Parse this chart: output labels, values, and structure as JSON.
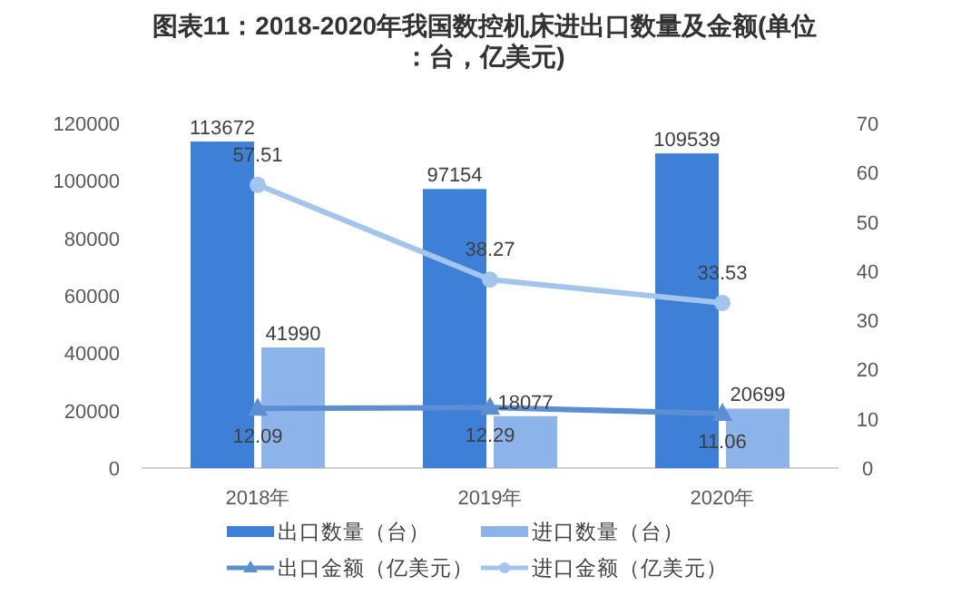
{
  "chart_data": {
    "type": "bar",
    "title": "图表11：2018-2020年我国数控机床进出口数量及金额(单位：台，亿美元)",
    "categories": [
      "2018年",
      "2019年",
      "2020年"
    ],
    "series": [
      {
        "name": "出口数量（台）",
        "color": "#3e80d8",
        "values": [
          113672,
          97154,
          109539
        ]
      },
      {
        "name": "进口数量（台）",
        "color": "#8cb4ea",
        "values": [
          41990,
          18077,
          20699
        ]
      },
      {
        "name": "出口金额（亿美元）",
        "type": "line",
        "axis": "y2",
        "marker": "triangle",
        "color": "#5b8fd2",
        "values": [
          12.09,
          12.29,
          11.06
        ]
      },
      {
        "name": "进口金额（亿美元）",
        "type": "line",
        "axis": "y2",
        "marker": "circle",
        "color": "#a3c4ec",
        "values": [
          57.51,
          38.27,
          33.53
        ]
      }
    ],
    "ylim": [
      0,
      120000
    ],
    "yticks": [
      0,
      20000,
      40000,
      60000,
      80000,
      100000,
      120000
    ],
    "y2lim": [
      0,
      70
    ],
    "y2ticks": [
      0,
      10,
      20,
      30,
      40,
      50,
      60,
      70
    ],
    "data_labels": true,
    "legend": "bottom",
    "grid": false
  }
}
